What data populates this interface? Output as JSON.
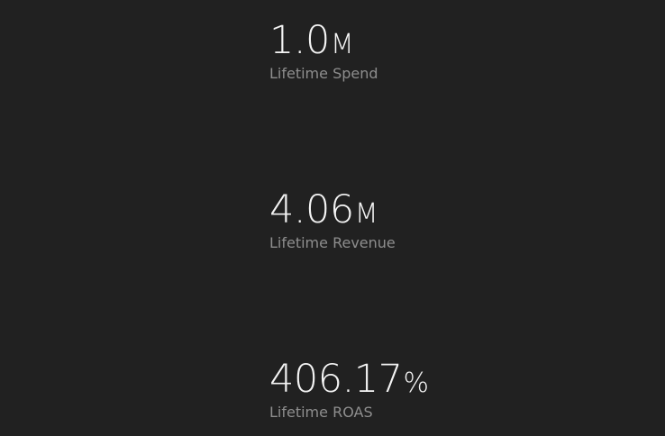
{
  "metrics": [
    {
      "value": "1.0",
      "suffix": "M",
      "label": "Lifetime Spend"
    },
    {
      "value": "4.06",
      "suffix": "M",
      "label": "Lifetime Revenue"
    },
    {
      "value": "406.17",
      "suffix": "%",
      "label": "Lifetime ROAS"
    }
  ],
  "colors": {
    "background": "#212121",
    "value": "#f4f4f4",
    "label": "#8e8e8e"
  }
}
